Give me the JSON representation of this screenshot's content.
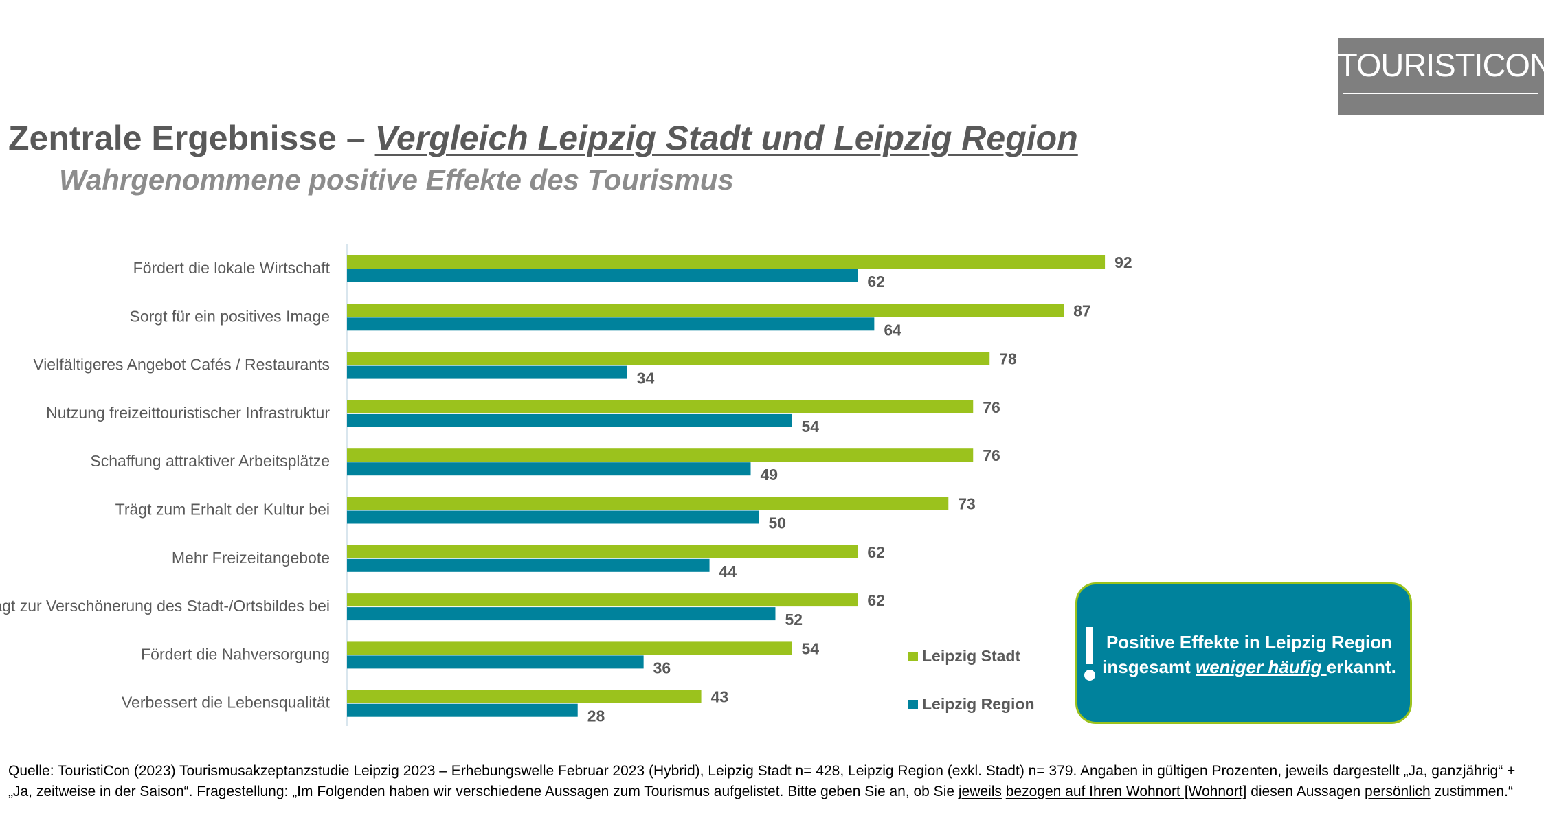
{
  "logo": "TOURISTICON",
  "title": {
    "prefix": "Zentrale Ergebnisse  – ",
    "emphasis": "Vergleich Leipzig Stadt und Leipzig Region"
  },
  "subtitle": "Wahrgenommene positive Effekte des Tourismus",
  "chart_data": {
    "type": "bar",
    "orientation": "horizontal",
    "categories": [
      "Fördert die lokale Wirtschaft",
      "Sorgt für ein positives Image",
      "Vielfältigeres Angebot Cafés / Restaurants",
      "Nutzung freizeittouristischer Infrastruktur",
      "Schaffung attraktiver Arbeitsplätze",
      "Trägt zum Erhalt der Kultur bei",
      "Mehr Freizeitangebote",
      "Trägt zur Verschönerung des Stadt-/Ortsbildes bei",
      "Fördert die Nahversorgung",
      "Verbessert die Lebensqualität"
    ],
    "series": [
      {
        "name": "Leipzig Stadt",
        "color": "#9bc21d",
        "values": [
          92,
          87,
          78,
          76,
          76,
          73,
          62,
          62,
          54,
          43
        ]
      },
      {
        "name": "Leipzig Region",
        "color": "#00829c",
        "values": [
          62,
          64,
          34,
          54,
          49,
          50,
          44,
          52,
          36,
          28
        ]
      }
    ],
    "xlim": [
      0,
      100
    ],
    "grid": false,
    "legend": "bottom-right"
  },
  "callout": {
    "line1": "Positive Effekte in Leipzig Region",
    "pre": "insgesamt ",
    "emphasis": "weniger häufig ",
    "post": "erkannt."
  },
  "footnote": {
    "a": "Quelle: TouristiCon (2023) Tourismusakzeptanzstudie Leipzig 2023 – Erhebungswelle Februar 2023 (Hybrid), Leipzig Stadt n= 428, Leipzig Region (exkl. Stadt) n= 379. Angaben in gültigen Prozenten, jeweils dargestellt „Ja, ganzjährig“ + „Ja, zeitweise in der Saison“. Fragestellung: „Im Folgenden haben wir verschiedene Aussagen zum Tourismus aufgelistet. Bitte geben Sie an, ob Sie ",
    "u1": "jeweils",
    "sp": " ",
    "u2": "bezogen auf Ihren Wohnort [Wohnort]",
    "b": " diesen Aussagen ",
    "u3": "persönlich",
    "c": " zustimmen.“"
  }
}
